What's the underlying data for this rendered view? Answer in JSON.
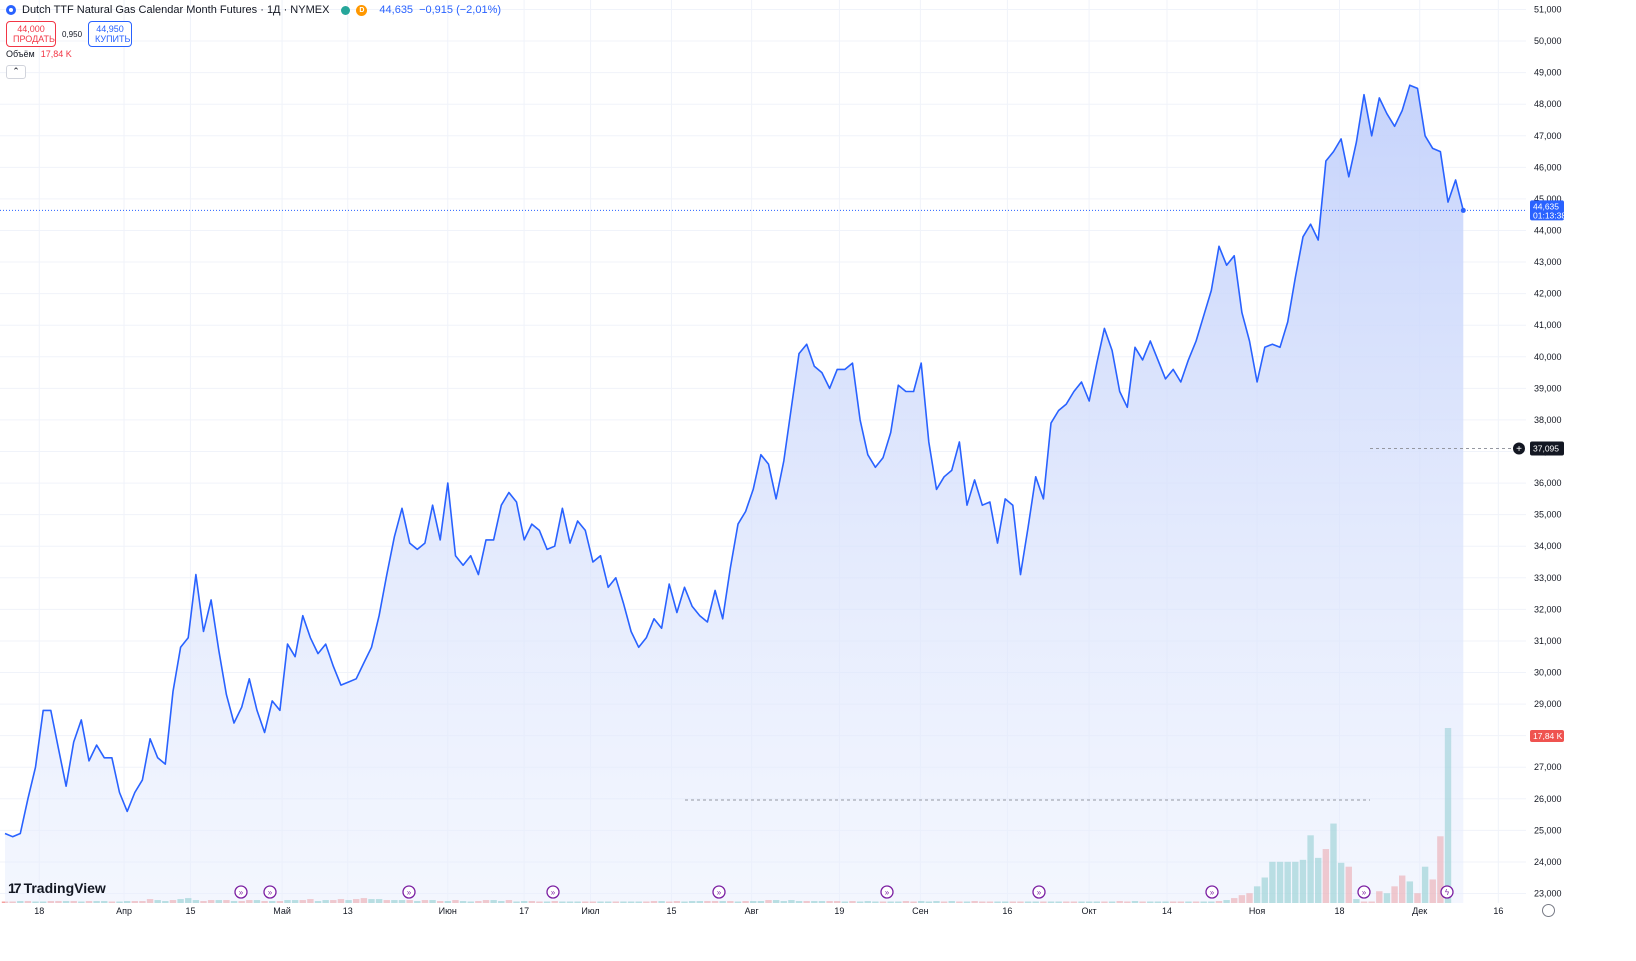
{
  "header": {
    "title": "Dutch TTF Natural Gas Calendar Month Futures · 1Д · NYMEX",
    "status_badge": "D",
    "last_price": "44,635",
    "change": "−0,915 (−2,01%)"
  },
  "trade": {
    "sell_price": "44,000",
    "sell_label": "ПРОДАТЬ",
    "spread": "0,950",
    "buy_price": "44,950",
    "buy_label": "КУПИТЬ"
  },
  "volume_legend": {
    "label": "Объём",
    "value": "17,84 K"
  },
  "collapse_icon": "chevron-up-icon",
  "branding": {
    "name": "TradingView"
  },
  "colors": {
    "line": "#2962ff",
    "area_top": "#c9d5fb",
    "vol_up": "#26a69a",
    "vol_down": "#ef5350",
    "sell": "#f23645",
    "buy": "#2962ff"
  },
  "chart_data": {
    "type": "area",
    "price_scale": {
      "ylim": [
        22.7,
        51.3
      ],
      "ticks": [
        "23,000",
        "24,000",
        "25,000",
        "26,000",
        "27,000",
        "28,000",
        "29,000",
        "30,000",
        "31,000",
        "32,000",
        "33,000",
        "34,000",
        "35,000",
        "36,000",
        "37,000",
        "38,000",
        "39,000",
        "40,000",
        "41,000",
        "42,000",
        "43,000",
        "44,000",
        "45,000",
        "46,000",
        "47,000",
        "48,000",
        "49,000",
        "50,000",
        "51,000"
      ]
    },
    "x_ticks": [
      "18",
      "Апр",
      "15",
      "Май",
      "13",
      "Июн",
      "17",
      "Июл",
      "15",
      "Авг",
      "19",
      "Сен",
      "16",
      "Окт",
      "14",
      "Ноя",
      "18",
      "Дек",
      "16"
    ],
    "series": [
      {
        "values": [
          24.9,
          24.8,
          24.9,
          26.0,
          27.0,
          28.8,
          28.8,
          27.6,
          26.4,
          27.8,
          28.5,
          27.2,
          27.7,
          27.3,
          27.3,
          26.2,
          25.6,
          26.2,
          26.6,
          27.9,
          27.3,
          27.1,
          29.4,
          30.8,
          31.1,
          33.1,
          31.3,
          32.3,
          30.7,
          29.3,
          28.4,
          28.9,
          29.8,
          28.8,
          28.1,
          29.1,
          28.8,
          30.9,
          30.5,
          31.8,
          31.1,
          30.6,
          30.9,
          30.2,
          29.6,
          29.7,
          29.8,
          30.3,
          30.8,
          31.8,
          33.1,
          34.3,
          35.2,
          34.1,
          33.9,
          34.1,
          35.3,
          34.2,
          36.0,
          33.7,
          33.4,
          33.7,
          33.1,
          34.2,
          34.2,
          35.3,
          35.7,
          35.4,
          34.2,
          34.7,
          34.5,
          33.9,
          34.0,
          35.2,
          34.1,
          34.8,
          34.5,
          33.5,
          33.7,
          32.7,
          33.0,
          32.2,
          31.3,
          30.8,
          31.1,
          31.7,
          31.4,
          32.8,
          31.9,
          32.7,
          32.1,
          31.8,
          31.6,
          32.6,
          31.7,
          33.3,
          34.7,
          35.1,
          35.8,
          36.9,
          36.6,
          35.5,
          36.7,
          38.4,
          40.1,
          40.4,
          39.7,
          39.5,
          39.0,
          39.6,
          39.6,
          39.8,
          38.0,
          36.9,
          36.5,
          36.8,
          37.6,
          39.1,
          38.9,
          38.9,
          39.8,
          37.3,
          35.8,
          36.2,
          36.4,
          37.3,
          35.3,
          36.1,
          35.3,
          35.4,
          34.1,
          35.5,
          35.3,
          33.1,
          34.6,
          36.2,
          35.5,
          37.9,
          38.3,
          38.5,
          38.9,
          39.2,
          38.6,
          39.8,
          40.9,
          40.2,
          38.9,
          38.4,
          40.3,
          39.9,
          40.5,
          39.9,
          39.3,
          39.6,
          39.2,
          39.9,
          40.5,
          41.3,
          42.1,
          43.5,
          42.9,
          43.2,
          41.4,
          40.5,
          39.2,
          40.3,
          40.4,
          40.3,
          41.1,
          42.5,
          43.8,
          44.2,
          43.7,
          46.2,
          46.5,
          46.9,
          45.7,
          46.8,
          48.3,
          47.0,
          48.2,
          47.7,
          47.3,
          47.8,
          48.6,
          48.5,
          47.0,
          46.6,
          46.5,
          44.9,
          45.6,
          44.635
        ]
      },
      {
        "name": "Объём",
        "values": [
          0.1,
          0.1,
          0.2,
          0.2,
          0.1,
          0.1,
          0.2,
          0.2,
          0.2,
          0.2,
          0.1,
          0.2,
          0.2,
          0.2,
          0.1,
          0.1,
          0.2,
          0.2,
          0.2,
          0.4,
          0.3,
          0.2,
          0.3,
          0.4,
          0.5,
          0.3,
          0.2,
          0.3,
          0.3,
          0.3,
          0.2,
          0.2,
          0.3,
          0.3,
          0.2,
          0.2,
          0.2,
          0.3,
          0.3,
          0.3,
          0.4,
          0.2,
          0.3,
          0.3,
          0.4,
          0.3,
          0.4,
          0.5,
          0.4,
          0.4,
          0.3,
          0.3,
          0.3,
          0.3,
          0.2,
          0.3,
          0.3,
          0.2,
          0.2,
          0.3,
          0.2,
          0.1,
          0.2,
          0.3,
          0.3,
          0.2,
          0.3,
          0.1,
          0.2,
          0.2,
          0.1,
          0.1,
          0.2,
          0.1,
          0.1,
          0.1,
          0.1,
          0.1,
          0.1,
          0.1,
          0.1,
          0.1,
          0.1,
          0.1,
          0.1,
          0.2,
          0.2,
          0.1,
          0.2,
          0.1,
          0.2,
          0.2,
          0.2,
          0.2,
          0.2,
          0.2,
          0.1,
          0.2,
          0.2,
          0.2,
          0.3,
          0.3,
          0.2,
          0.3,
          0.2,
          0.2,
          0.2,
          0.2,
          0.2,
          0.2,
          0.1,
          0.2,
          0.1,
          0.2,
          0.1,
          0.1,
          0.1,
          0.1,
          0.2,
          0.1,
          0.2,
          0.1,
          0.2,
          0.1,
          0.2,
          0.1,
          0.1,
          0.2,
          0.1,
          0.1,
          0.1,
          0.1,
          0.1,
          0.1,
          0.1,
          0.1,
          0.1,
          0.1,
          0.1,
          0.1,
          0.1,
          0.1,
          0.1,
          0.1,
          0.1,
          0.1,
          0.2,
          0.1,
          0.2,
          0.1,
          0.1,
          0.1,
          0.1,
          0.1,
          0.1,
          0.1,
          0.1,
          0.1,
          0.1,
          0.2,
          0.3,
          0.5,
          0.8,
          1.0,
          1.7,
          2.6,
          4.2,
          4.2,
          4.2,
          4.2,
          4.4,
          6.9,
          4.6,
          5.5,
          8.1,
          4.1,
          3.7,
          0.4,
          0.1,
          0.1,
          1.2,
          1.0,
          1.7,
          2.8,
          2.2,
          1.0,
          3.7,
          2.4,
          6.8,
          17.84
        ]
      }
    ],
    "volume_up": [
      0,
      0,
      1,
      0,
      1,
      1,
      0,
      0,
      1,
      0,
      1,
      0,
      1,
      1,
      0,
      1,
      1,
      0,
      0,
      0,
      1,
      1,
      0,
      1,
      1,
      1,
      0,
      0,
      1,
      0,
      1,
      0,
      0,
      1,
      0,
      1,
      0,
      1,
      1,
      0,
      0,
      1,
      1,
      0,
      0,
      1,
      0,
      0,
      1,
      1,
      0,
      1,
      1,
      0,
      1,
      0,
      1,
      0,
      1,
      0,
      1,
      1,
      0,
      0,
      1,
      1,
      0,
      1,
      1,
      0,
      0,
      1,
      0,
      1,
      1,
      1,
      0,
      0,
      1,
      1,
      0,
      1,
      1,
      1,
      0,
      0,
      1,
      0,
      0,
      1,
      1,
      1,
      0,
      0,
      1,
      0,
      1,
      0,
      1,
      1,
      0,
      1,
      1,
      1,
      1,
      0,
      1,
      1,
      0,
      0,
      1,
      0,
      1,
      1,
      1,
      0,
      1,
      1,
      0,
      0,
      1,
      1,
      1,
      0,
      1,
      0,
      1,
      0,
      0,
      0,
      1,
      1,
      0,
      0,
      1,
      1,
      0,
      1,
      1,
      0,
      0,
      1,
      1,
      1,
      0,
      1,
      0,
      0,
      1,
      0,
      1,
      1,
      1,
      0,
      0,
      1,
      0,
      1,
      1,
      0,
      1,
      0,
      0,
      0,
      1,
      1,
      1,
      1,
      1,
      1,
      1,
      1,
      1,
      0,
      1,
      1,
      0,
      1,
      0,
      0,
      0,
      1,
      0,
      0,
      1,
      0,
      1,
      0,
      0,
      1,
      0,
      0
    ],
    "current_price_label": {
      "price": "44,635",
      "timer": "01:13:38"
    },
    "alert_price": "37,095",
    "volume_label": "17,84 K"
  }
}
